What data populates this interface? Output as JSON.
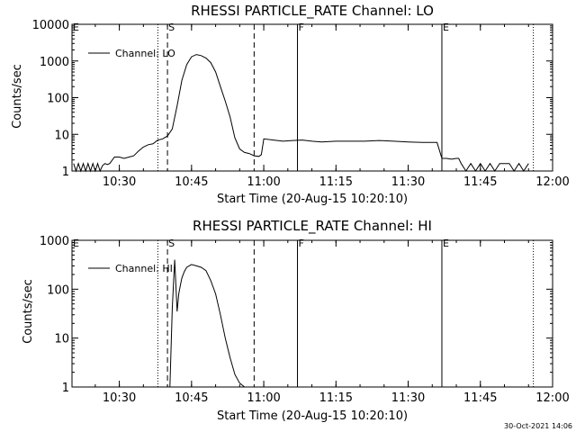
{
  "footer": {
    "timestamp": "30-Oct-2021 14:06"
  },
  "chart_data": [
    {
      "type": "line",
      "title": "RHESSI PARTICLE_RATE Channel: LO",
      "xlabel": "Start Time (20-Aug-15 10:20:10)",
      "ylabel": "Counts/sec",
      "yscale": "log",
      "xlim": [
        "10:20:10",
        "12:00:00"
      ],
      "ylim": [
        1,
        10000
      ],
      "x_ticks": [
        "10:30",
        "10:45",
        "11:00",
        "11:15",
        "11:30",
        "11:45",
        "12:00"
      ],
      "y_ticks": [
        "1",
        "10",
        "100",
        "1000",
        "10000"
      ],
      "legend": {
        "position": "top-left",
        "entries": [
          "Channel: LO"
        ]
      },
      "markers": [
        {
          "label": "E",
          "time": "10:20:10",
          "style": "dotted"
        },
        {
          "label": "S",
          "time": "10:40:00",
          "style": "dashed"
        },
        {
          "label": "",
          "time": "10:38:00",
          "style": "dotted"
        },
        {
          "label": "",
          "time": "10:58:00",
          "style": "dashed"
        },
        {
          "label": "F",
          "time": "11:07:00",
          "style": "solid"
        },
        {
          "label": "E",
          "time": "11:37:00",
          "style": "solid"
        },
        {
          "label": "",
          "time": "11:56:00",
          "style": "dotted"
        }
      ],
      "series": [
        {
          "x": [
            "10:20:30",
            "10:21:00",
            "10:21:30",
            "10:22:00",
            "10:22:30",
            "10:23:00",
            "10:23:30",
            "10:24:00",
            "10:24:30",
            "10:25:00",
            "10:25:30",
            "10:26:00",
            "10:26:30",
            "10:27:00",
            "10:27:30",
            "10:28:00",
            "10:29:00",
            "10:30:00",
            "10:31:00",
            "10:32:00",
            "10:33:00",
            "10:34:00",
            "10:35:00",
            "10:36:00",
            "10:37:00",
            "10:38:00",
            "10:39:00",
            "10:40:00",
            "10:41:00",
            "10:42:00",
            "10:43:00",
            "10:44:00",
            "10:45:00",
            "10:46:00",
            "10:47:00",
            "10:48:00",
            "10:49:00",
            "10:50:00",
            "10:51:00",
            "10:52:00",
            "10:53:00",
            "10:54:00",
            "10:55:00",
            "10:56:00",
            "10:57:00",
            "10:58:00",
            "10:59:00",
            "10:59:30",
            "11:00:00",
            "11:02:00",
            "11:04:00",
            "11:06:00",
            "11:08:00",
            "11:10:00",
            "11:12:00",
            "11:15:00",
            "11:18:00",
            "11:21:00",
            "11:24:00",
            "11:27:00",
            "11:30:00",
            "11:33:00",
            "11:36:00",
            "11:37:00",
            "11:38:00",
            "11:39:00",
            "11:40:00",
            "11:40:30",
            "11:41:00",
            "11:42:00",
            "11:43:00",
            "11:44:00",
            "11:45:00",
            "11:46:00",
            "11:47:00",
            "11:48:00",
            "11:49:00",
            "11:50:00",
            "11:51:00",
            "11:52:00",
            "11:53:00",
            "11:54:00",
            "11:55:00"
          ],
          "y": [
            1.6,
            1,
            1.6,
            1,
            1.6,
            1,
            1.6,
            1,
            1.6,
            1,
            1.6,
            1,
            1.4,
            1.6,
            1.5,
            1.6,
            2.4,
            2.4,
            2.2,
            2.4,
            2.6,
            3.5,
            4.5,
            5.2,
            5.5,
            7,
            7.5,
            9,
            14,
            60,
            300,
            800,
            1300,
            1500,
            1400,
            1200,
            900,
            500,
            200,
            80,
            30,
            8,
            4,
            3.2,
            3,
            2.6,
            2.5,
            2.8,
            7.5,
            7,
            6.5,
            6.8,
            7,
            6.5,
            6.2,
            6.5,
            6.5,
            6.5,
            6.8,
            6.5,
            6.2,
            6.0,
            6.0,
            2.2,
            2.2,
            2.1,
            2.2,
            2.2,
            1.6,
            1,
            1.6,
            1,
            1.6,
            1,
            1.6,
            1,
            1.6,
            1.6,
            1.6,
            1,
            1.6,
            1,
            1.6
          ]
        }
      ]
    },
    {
      "type": "line",
      "title": "RHESSI PARTICLE_RATE Channel: HI",
      "xlabel": "Start Time (20-Aug-15 10:20:10)",
      "ylabel": "Counts/sec",
      "yscale": "log",
      "xlim": [
        "10:20:10",
        "12:00:00"
      ],
      "ylim": [
        1,
        1000
      ],
      "x_ticks": [
        "10:30",
        "10:45",
        "11:00",
        "11:15",
        "11:30",
        "11:45",
        "12:00"
      ],
      "y_ticks": [
        "1",
        "10",
        "100",
        "1000"
      ],
      "legend": {
        "position": "top-left",
        "entries": [
          "Channel: HI"
        ]
      },
      "markers": [
        {
          "label": "E",
          "time": "10:20:10",
          "style": "dotted"
        },
        {
          "label": "S",
          "time": "10:40:00",
          "style": "dashed"
        },
        {
          "label": "",
          "time": "10:38:00",
          "style": "dotted"
        },
        {
          "label": "",
          "time": "10:58:00",
          "style": "dashed"
        },
        {
          "label": "F",
          "time": "11:07:00",
          "style": "solid"
        },
        {
          "label": "E",
          "time": "11:37:00",
          "style": "solid"
        },
        {
          "label": "",
          "time": "11:56:00",
          "style": "dotted"
        }
      ],
      "series": [
        {
          "x": [
            "10:40:30",
            "10:41:00",
            "10:41:30",
            "10:42:00",
            "10:42:20",
            "10:42:40",
            "10:43:00",
            "10:43:30",
            "10:44:00",
            "10:45:00",
            "10:46:00",
            "10:47:00",
            "10:48:00",
            "10:49:00",
            "10:50:00",
            "10:51:00",
            "10:52:00",
            "10:53:00",
            "10:54:00",
            "10:55:00",
            "10:56:00"
          ],
          "y": [
            1,
            40,
            400,
            35,
            80,
            120,
            170,
            230,
            280,
            320,
            300,
            280,
            240,
            150,
            80,
            30,
            10,
            4,
            1.8,
            1.2,
            1
          ]
        }
      ]
    }
  ]
}
